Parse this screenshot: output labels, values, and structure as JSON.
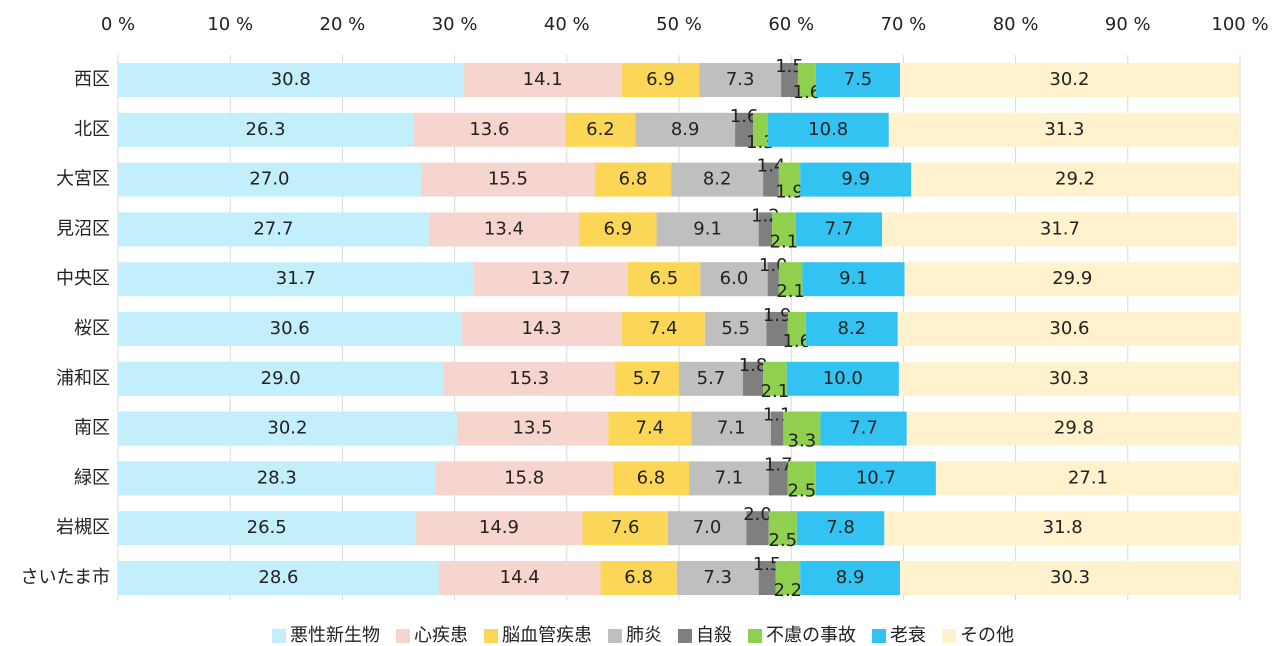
{
  "chart_data": {
    "type": "stacked-bar-horizontal",
    "categories": [
      "西区",
      "北区",
      "大宮区",
      "見沼区",
      "中央区",
      "桜区",
      "浦和区",
      "南区",
      "緑区",
      "岩槻区",
      "さいたま市"
    ],
    "xlim": [
      0,
      100
    ],
    "xticks": [
      {
        "value": 0,
        "label": "0 %"
      },
      {
        "value": 10,
        "label": "10 %"
      },
      {
        "value": 20,
        "label": "20 %"
      },
      {
        "value": 30,
        "label": "30 %"
      },
      {
        "value": 40,
        "label": "40 %"
      },
      {
        "value": 50,
        "label": "50 %"
      },
      {
        "value": 60,
        "label": "60 %"
      },
      {
        "value": 70,
        "label": "70 %"
      },
      {
        "value": 80,
        "label": "80 %"
      },
      {
        "value": 90,
        "label": "90 %"
      },
      {
        "value": 100,
        "label": "100 %"
      }
    ],
    "grid": true,
    "legend": "bottom",
    "series": [
      {
        "name": "悪性新生物",
        "color": "#c3eefb",
        "values": [
          30.8,
          26.3,
          27.0,
          27.7,
          31.7,
          30.6,
          29.0,
          30.2,
          28.3,
          26.5,
          28.6
        ],
        "value_labels": [
          "30.8",
          "26.3",
          "27.0",
          "27.7",
          "31.7",
          "30.6",
          "29.0",
          "30.2",
          "28.3",
          "26.5",
          "28.6"
        ]
      },
      {
        "name": "心疾患",
        "color": "#f6d5cf",
        "values": [
          14.1,
          13.6,
          15.5,
          13.4,
          13.7,
          14.3,
          15.3,
          13.5,
          15.8,
          14.9,
          14.4
        ],
        "value_labels": [
          "14.1",
          "13.6",
          "15.5",
          "13.4",
          "13.7",
          "14.3",
          "15.3",
          "13.5",
          "15.8",
          "14.9",
          "14.4"
        ]
      },
      {
        "name": "脳血管疾患",
        "color": "#fcd757",
        "values": [
          6.9,
          6.2,
          6.8,
          6.9,
          6.5,
          7.4,
          5.7,
          7.4,
          6.8,
          7.6,
          6.8
        ],
        "value_labels": [
          "6.9",
          "6.2",
          "6.8",
          "6.9",
          "6.5",
          "7.4",
          "5.7",
          "7.4",
          "6.8",
          "7.6",
          "6.8"
        ]
      },
      {
        "name": "肺炎",
        "color": "#bfbfbf",
        "values": [
          7.3,
          8.9,
          8.2,
          9.1,
          6.0,
          5.5,
          5.7,
          7.1,
          7.1,
          7.0,
          7.3
        ],
        "value_labels": [
          "7.3",
          "8.9",
          "8.2",
          "9.1",
          "6.0",
          "5.5",
          "5.7",
          "7.1",
          "7.1",
          "7.0",
          "7.3"
        ]
      },
      {
        "name": "自殺",
        "color": "#7f7f7f",
        "values": [
          1.5,
          1.6,
          1.4,
          1.2,
          1.0,
          1.9,
          1.8,
          1.1,
          1.7,
          2.0,
          1.5
        ],
        "value_labels": [
          "1.5",
          "1.6",
          "1.4",
          "1.2",
          "1.0",
          "1.9",
          "1.8",
          "1.1",
          "1.7",
          "2.0",
          "1.5"
        ]
      },
      {
        "name": "不慮の事故",
        "color": "#8fd14f",
        "values": [
          1.6,
          1.3,
          1.9,
          2.1,
          2.1,
          1.6,
          2.1,
          3.3,
          2.5,
          2.5,
          2.2
        ],
        "value_labels": [
          "1.6",
          "1.3",
          "1.9",
          "2.1",
          "2.1",
          "1.6",
          "2.1",
          "3.3",
          "2.5",
          "2.5",
          "2.2"
        ]
      },
      {
        "name": "老衰",
        "color": "#33c3f3",
        "values": [
          7.5,
          10.8,
          9.9,
          7.7,
          9.1,
          8.2,
          10.0,
          7.7,
          10.7,
          7.8,
          8.9
        ],
        "value_labels": [
          "7.5",
          "10.8",
          "9.9",
          "7.7",
          "9.1",
          "8.2",
          "10.0",
          "7.7",
          "10.7",
          "7.8",
          "8.9"
        ]
      },
      {
        "name": "その他",
        "color": "#fff2cc",
        "values": [
          30.2,
          31.3,
          29.2,
          31.7,
          29.9,
          30.6,
          30.3,
          29.8,
          27.1,
          31.8,
          30.3
        ],
        "value_labels": [
          "30.2",
          "31.3",
          "29.2",
          "31.7",
          "29.9",
          "30.6",
          "30.3",
          "29.8",
          "27.1",
          "31.8",
          "30.3"
        ]
      }
    ]
  }
}
